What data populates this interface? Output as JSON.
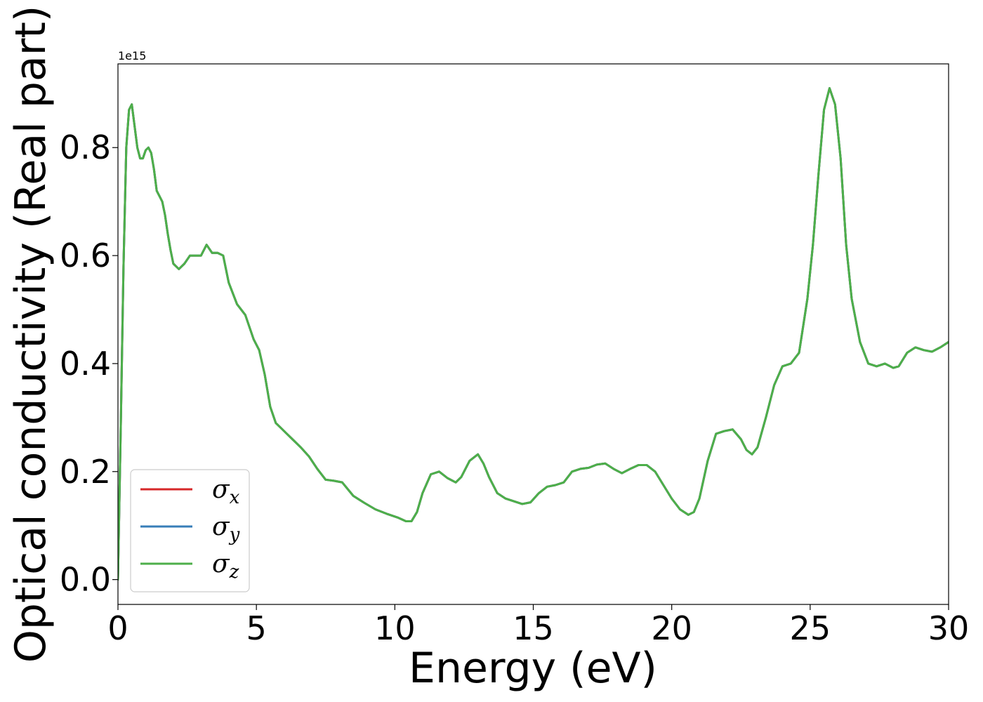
{
  "chart_data": {
    "type": "line",
    "title": "",
    "xlabel": "Energy (eV)",
    "ylabel": "Optical conductivity (Real part)",
    "y_offset_label": "1e15",
    "xlim": [
      0,
      30
    ],
    "ylim": [
      -0.046,
      0.955
    ],
    "xticks": [
      0,
      5,
      10,
      15,
      20,
      25,
      30
    ],
    "yticks": [
      0.0,
      0.2,
      0.4,
      0.6,
      0.8
    ],
    "xtick_labels": [
      "0",
      "5",
      "10",
      "15",
      "20",
      "25",
      "30"
    ],
    "ytick_labels": [
      "0.0",
      "0.2",
      "0.4",
      "0.6",
      "0.8"
    ],
    "grid": false,
    "legend_position": "lower-left",
    "x": [
      0,
      0.1,
      0.2,
      0.3,
      0.4,
      0.5,
      0.6,
      0.7,
      0.8,
      0.9,
      1.0,
      1.1,
      1.2,
      1.3,
      1.4,
      1.5,
      1.6,
      1.7,
      1.8,
      1.9,
      2.0,
      2.2,
      2.4,
      2.6,
      2.8,
      3.0,
      3.2,
      3.4,
      3.6,
      3.8,
      4.0,
      4.3,
      4.6,
      4.9,
      5.1,
      5.3,
      5.5,
      5.7,
      5.9,
      6.1,
      6.3,
      6.6,
      6.9,
      7.2,
      7.5,
      7.8,
      8.1,
      8.5,
      8.9,
      9.3,
      9.7,
      10.1,
      10.4,
      10.6,
      10.8,
      11.0,
      11.3,
      11.6,
      11.9,
      12.2,
      12.4,
      12.7,
      13.0,
      13.2,
      13.4,
      13.7,
      14.0,
      14.3,
      14.6,
      14.9,
      15.2,
      15.5,
      15.8,
      16.1,
      16.4,
      16.7,
      17.0,
      17.3,
      17.6,
      17.9,
      18.2,
      18.5,
      18.8,
      19.1,
      19.4,
      19.7,
      20.0,
      20.3,
      20.6,
      20.8,
      21.0,
      21.3,
      21.6,
      21.9,
      22.2,
      22.5,
      22.7,
      22.9,
      23.1,
      23.4,
      23.7,
      24.0,
      24.3,
      24.6,
      24.9,
      25.1,
      25.3,
      25.5,
      25.7,
      25.9,
      26.1,
      26.3,
      26.5,
      26.8,
      27.1,
      27.4,
      27.7,
      28.0,
      28.2,
      28.5,
      28.8,
      29.1,
      29.4,
      29.7,
      30.0
    ],
    "series": [
      {
        "name": "σx",
        "color": "#d62728",
        "values": [
          0.0,
          0.28,
          0.58,
          0.8,
          0.87,
          0.88,
          0.84,
          0.8,
          0.78,
          0.78,
          0.795,
          0.8,
          0.79,
          0.76,
          0.72,
          0.71,
          0.7,
          0.675,
          0.64,
          0.61,
          0.585,
          0.575,
          0.585,
          0.6,
          0.6,
          0.6,
          0.62,
          0.605,
          0.605,
          0.6,
          0.55,
          0.51,
          0.49,
          0.445,
          0.425,
          0.38,
          0.32,
          0.29,
          0.28,
          0.27,
          0.26,
          0.245,
          0.228,
          0.205,
          0.185,
          0.183,
          0.18,
          0.155,
          0.142,
          0.13,
          0.122,
          0.115,
          0.108,
          0.108,
          0.125,
          0.16,
          0.195,
          0.2,
          0.188,
          0.18,
          0.19,
          0.22,
          0.232,
          0.215,
          0.19,
          0.16,
          0.15,
          0.145,
          0.14,
          0.143,
          0.16,
          0.172,
          0.175,
          0.18,
          0.2,
          0.205,
          0.207,
          0.213,
          0.215,
          0.205,
          0.197,
          0.205,
          0.212,
          0.212,
          0.2,
          0.175,
          0.15,
          0.13,
          0.12,
          0.125,
          0.15,
          0.22,
          0.27,
          0.275,
          0.278,
          0.26,
          0.24,
          0.232,
          0.245,
          0.3,
          0.36,
          0.395,
          0.4,
          0.42,
          0.52,
          0.62,
          0.75,
          0.87,
          0.91,
          0.88,
          0.78,
          0.62,
          0.52,
          0.44,
          0.4,
          0.395,
          0.4,
          0.392,
          0.395,
          0.42,
          0.43,
          0.425,
          0.422,
          0.43,
          0.44
        ]
      },
      {
        "name": "σy",
        "color": "#377eb8",
        "values": [
          0.0,
          0.28,
          0.58,
          0.8,
          0.87,
          0.88,
          0.84,
          0.8,
          0.78,
          0.78,
          0.795,
          0.8,
          0.79,
          0.76,
          0.72,
          0.71,
          0.7,
          0.675,
          0.64,
          0.61,
          0.585,
          0.575,
          0.585,
          0.6,
          0.6,
          0.6,
          0.62,
          0.605,
          0.605,
          0.6,
          0.55,
          0.51,
          0.49,
          0.445,
          0.425,
          0.38,
          0.32,
          0.29,
          0.28,
          0.27,
          0.26,
          0.245,
          0.228,
          0.205,
          0.185,
          0.183,
          0.18,
          0.155,
          0.142,
          0.13,
          0.122,
          0.115,
          0.108,
          0.108,
          0.125,
          0.16,
          0.195,
          0.2,
          0.188,
          0.18,
          0.19,
          0.22,
          0.232,
          0.215,
          0.19,
          0.16,
          0.15,
          0.145,
          0.14,
          0.143,
          0.16,
          0.172,
          0.175,
          0.18,
          0.2,
          0.205,
          0.207,
          0.213,
          0.215,
          0.205,
          0.197,
          0.205,
          0.212,
          0.212,
          0.2,
          0.175,
          0.15,
          0.13,
          0.12,
          0.125,
          0.15,
          0.22,
          0.27,
          0.275,
          0.278,
          0.26,
          0.24,
          0.232,
          0.245,
          0.3,
          0.36,
          0.395,
          0.4,
          0.42,
          0.52,
          0.62,
          0.75,
          0.87,
          0.91,
          0.88,
          0.78,
          0.62,
          0.52,
          0.44,
          0.4,
          0.395,
          0.4,
          0.392,
          0.395,
          0.42,
          0.43,
          0.425,
          0.422,
          0.43,
          0.44
        ]
      },
      {
        "name": "σz",
        "color": "#4daf4a",
        "values": [
          0.0,
          0.28,
          0.58,
          0.8,
          0.87,
          0.88,
          0.84,
          0.8,
          0.78,
          0.78,
          0.795,
          0.8,
          0.79,
          0.76,
          0.72,
          0.71,
          0.7,
          0.675,
          0.64,
          0.61,
          0.585,
          0.575,
          0.585,
          0.6,
          0.6,
          0.6,
          0.62,
          0.605,
          0.605,
          0.6,
          0.55,
          0.51,
          0.49,
          0.445,
          0.425,
          0.38,
          0.32,
          0.29,
          0.28,
          0.27,
          0.26,
          0.245,
          0.228,
          0.205,
          0.185,
          0.183,
          0.18,
          0.155,
          0.142,
          0.13,
          0.122,
          0.115,
          0.108,
          0.108,
          0.125,
          0.16,
          0.195,
          0.2,
          0.188,
          0.18,
          0.19,
          0.22,
          0.232,
          0.215,
          0.19,
          0.16,
          0.15,
          0.145,
          0.14,
          0.143,
          0.16,
          0.172,
          0.175,
          0.18,
          0.2,
          0.205,
          0.207,
          0.213,
          0.215,
          0.205,
          0.197,
          0.205,
          0.212,
          0.212,
          0.2,
          0.175,
          0.15,
          0.13,
          0.12,
          0.125,
          0.15,
          0.22,
          0.27,
          0.275,
          0.278,
          0.26,
          0.24,
          0.232,
          0.245,
          0.3,
          0.36,
          0.395,
          0.4,
          0.42,
          0.52,
          0.62,
          0.75,
          0.87,
          0.91,
          0.88,
          0.78,
          0.62,
          0.52,
          0.44,
          0.4,
          0.395,
          0.4,
          0.392,
          0.395,
          0.42,
          0.43,
          0.425,
          0.422,
          0.43,
          0.44
        ]
      }
    ],
    "legend": [
      {
        "symbol": "σ",
        "sub": "x",
        "color": "#d62728"
      },
      {
        "symbol": "σ",
        "sub": "y",
        "color": "#377eb8"
      },
      {
        "symbol": "σ",
        "sub": "z",
        "color": "#4daf4a"
      }
    ]
  }
}
